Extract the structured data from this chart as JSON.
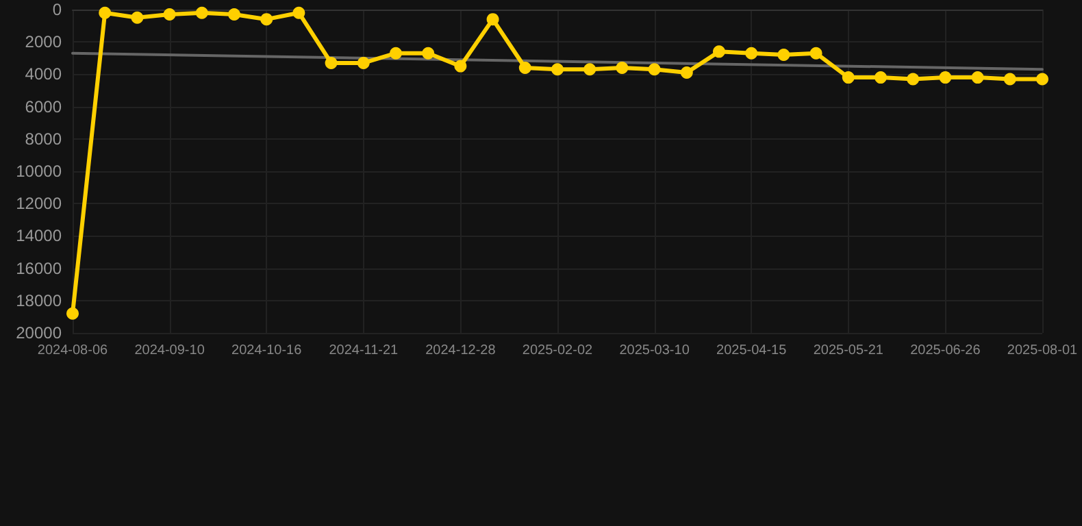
{
  "chart_data": {
    "type": "line",
    "categories": [
      "2024-08-06",
      null,
      null,
      "2024-09-10",
      null,
      null,
      "2024-10-16",
      null,
      null,
      "2024-11-21",
      null,
      null,
      "2024-12-28",
      null,
      null,
      "2025-02-02",
      null,
      null,
      "2025-03-10",
      null,
      null,
      "2025-04-15",
      null,
      null,
      "2025-05-21",
      null,
      null,
      "2025-06-26",
      null,
      null,
      "2025-08-01"
    ],
    "series": [
      {
        "color": "#ffd000",
        "values": [
          18800,
          200,
          500,
          300,
          200,
          300,
          600,
          200,
          3300,
          3300,
          2700,
          2700,
          3500,
          600,
          3600,
          3700,
          3700,
          3600,
          3700,
          3900,
          2600,
          2700,
          2800,
          2700,
          4200,
          4200,
          4300,
          4200,
          4200,
          4300,
          4300
        ]
      },
      {
        "type": "line",
        "color": "#666666",
        "marker": "none",
        "values": [
          2700,
          null,
          null,
          null,
          null,
          null,
          null,
          null,
          null,
          null,
          null,
          null,
          null,
          null,
          null,
          null,
          null,
          null,
          null,
          null,
          null,
          null,
          null,
          null,
          null,
          null,
          null,
          null,
          null,
          null,
          3700
        ]
      }
    ],
    "ylim": [
      20000,
      0
    ],
    "yticks": [
      0,
      2000,
      4000,
      6000,
      8000,
      10000,
      12000,
      14000,
      16000,
      18000,
      20000
    ],
    "grid": true,
    "marker": "circle",
    "line_style": "solid"
  }
}
